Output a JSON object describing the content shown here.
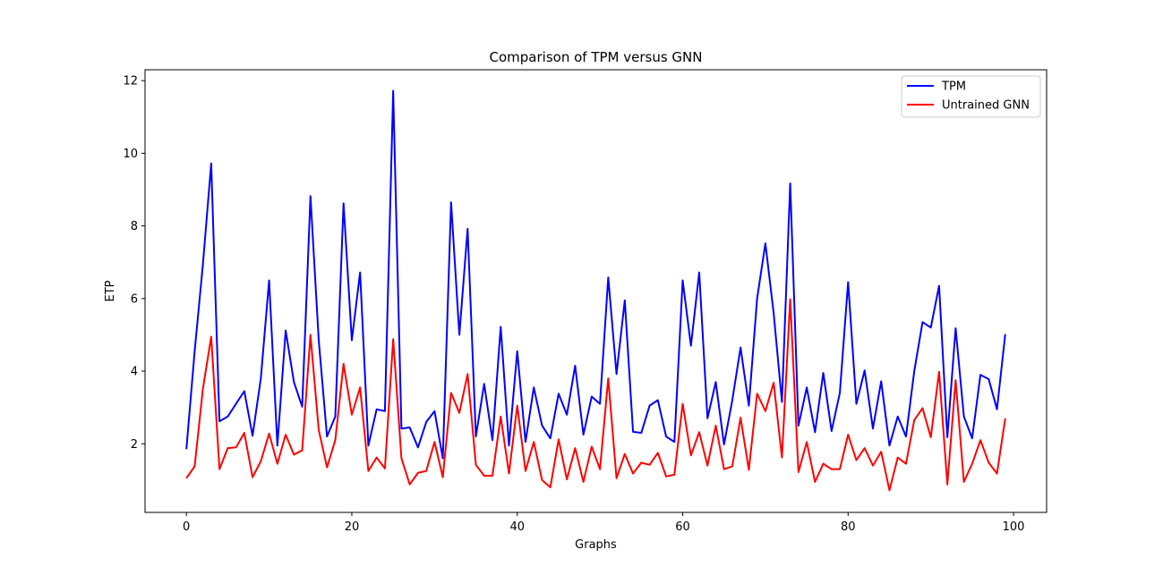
{
  "chart_data": {
    "type": "line",
    "title": "Comparison of TPM versus GNN",
    "xlabel": "Graphs",
    "ylabel": "ETP",
    "xlim": [
      -5,
      104
    ],
    "ylim": [
      0.11,
      12.3
    ],
    "xticks": [
      0,
      20,
      40,
      60,
      80,
      100
    ],
    "yticks": [
      2,
      4,
      6,
      8,
      10,
      12
    ],
    "grid": false,
    "legend_position": "upper right",
    "x": [
      0,
      1,
      2,
      3,
      4,
      5,
      6,
      7,
      8,
      9,
      10,
      11,
      12,
      13,
      14,
      15,
      16,
      17,
      18,
      19,
      20,
      21,
      22,
      23,
      24,
      25,
      26,
      27,
      28,
      29,
      30,
      31,
      32,
      33,
      34,
      35,
      36,
      37,
      38,
      39,
      40,
      41,
      42,
      43,
      44,
      45,
      46,
      47,
      48,
      49,
      50,
      51,
      52,
      53,
      54,
      55,
      56,
      57,
      58,
      59,
      60,
      61,
      62,
      63,
      64,
      65,
      66,
      67,
      68,
      69,
      70,
      71,
      72,
      73,
      74,
      75,
      76,
      77,
      78,
      79,
      80,
      81,
      82,
      83,
      84,
      85,
      86,
      87,
      88,
      89,
      90,
      91,
      92,
      93,
      94,
      95,
      96,
      97,
      98,
      99
    ],
    "series": [
      {
        "name": "TPM",
        "color": "#0000ff",
        "values": [
          1.85,
          4.55,
          6.95,
          9.72,
          2.62,
          2.75,
          3.1,
          3.45,
          2.22,
          3.8,
          6.5,
          1.95,
          5.12,
          3.7,
          3.02,
          8.82,
          4.85,
          2.2,
          2.75,
          8.62,
          4.85,
          6.72,
          1.95,
          2.95,
          2.9,
          11.72,
          2.42,
          2.45,
          1.9,
          2.6,
          2.9,
          1.6,
          8.65,
          5.0,
          7.92,
          2.2,
          3.65,
          2.1,
          5.22,
          1.95,
          4.55,
          2.05,
          3.55,
          2.5,
          2.15,
          3.38,
          2.8,
          4.15,
          2.25,
          3.3,
          3.1,
          6.58,
          3.92,
          5.95,
          2.33,
          2.3,
          3.05,
          3.2,
          2.2,
          2.05,
          6.5,
          4.7,
          6.72,
          2.7,
          3.7,
          1.98,
          3.2,
          4.65,
          3.05,
          6.0,
          7.52,
          5.6,
          3.15,
          9.17,
          2.5,
          3.55,
          2.32,
          3.95,
          2.35,
          3.4,
          6.45,
          3.1,
          4.02,
          2.42,
          3.72,
          1.95,
          2.75,
          2.2,
          4.0,
          5.35,
          5.2,
          6.35,
          2.18,
          5.18,
          2.75,
          2.15,
          3.9,
          3.78,
          2.95,
          5.02
        ]
      },
      {
        "name": "Untrained GNN",
        "color": "#ff0000",
        "values": [
          1.05,
          1.38,
          3.52,
          4.95,
          1.3,
          1.88,
          1.9,
          2.3,
          1.08,
          1.52,
          2.28,
          1.45,
          2.25,
          1.7,
          1.82,
          5.0,
          2.38,
          1.35,
          2.1,
          4.2,
          2.8,
          3.55,
          1.25,
          1.62,
          1.32,
          4.88,
          1.6,
          0.88,
          1.2,
          1.25,
          2.05,
          1.08,
          3.4,
          2.85,
          3.92,
          1.42,
          1.12,
          1.12,
          2.75,
          1.18,
          3.05,
          1.25,
          2.05,
          1.0,
          0.8,
          2.12,
          1.02,
          1.88,
          0.95,
          1.92,
          1.3,
          3.8,
          1.05,
          1.72,
          1.18,
          1.48,
          1.42,
          1.75,
          1.1,
          1.15,
          3.1,
          1.68,
          2.32,
          1.4,
          2.5,
          1.3,
          1.38,
          2.72,
          1.28,
          3.38,
          2.9,
          3.68,
          1.62,
          5.98,
          1.22,
          2.05,
          0.95,
          1.45,
          1.3,
          1.3,
          2.25,
          1.55,
          1.88,
          1.4,
          1.78,
          0.72,
          1.62,
          1.45,
          2.65,
          2.98,
          2.18,
          3.98,
          0.88,
          3.75,
          0.95,
          1.45,
          2.1,
          1.48,
          1.18,
          2.7
        ]
      }
    ]
  }
}
